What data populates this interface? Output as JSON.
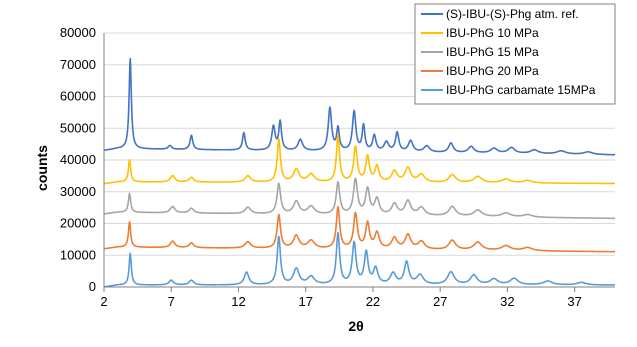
{
  "chart_data": {
    "type": "line",
    "title": "",
    "xlabel": "2θ",
    "ylabel": "counts",
    "xlim": [
      2,
      40
    ],
    "ylim": [
      0,
      80000
    ],
    "xticks": [
      2,
      7,
      12,
      17,
      22,
      27,
      32,
      37
    ],
    "yticks": [
      0,
      10000,
      20000,
      30000,
      40000,
      50000,
      60000,
      70000,
      80000
    ],
    "grid": "horizontal",
    "legend_position": "top-right",
    "series": [
      {
        "name": "(S)-IBU-(S)-Phg atm. ref.",
        "color": "#4472C4",
        "baseline": 41000,
        "peaks": [
          [
            3.95,
            28500,
            0.1
          ],
          [
            6.9,
            1200,
            0.15
          ],
          [
            8.5,
            4500,
            0.12
          ],
          [
            12.4,
            5500,
            0.12
          ],
          [
            14.6,
            7500,
            0.15
          ],
          [
            15.1,
            9000,
            0.12
          ],
          [
            16.6,
            3500,
            0.2
          ],
          [
            18.8,
            13500,
            0.15
          ],
          [
            19.4,
            7000,
            0.12
          ],
          [
            20.6,
            12500,
            0.15
          ],
          [
            21.3,
            8000,
            0.12
          ],
          [
            22.1,
            5000,
            0.15
          ],
          [
            23.0,
            3000,
            0.2
          ],
          [
            23.8,
            6000,
            0.15
          ],
          [
            24.8,
            3500,
            0.2
          ],
          [
            26.0,
            2000,
            0.25
          ],
          [
            27.8,
            3000,
            0.2
          ],
          [
            29.3,
            2000,
            0.25
          ],
          [
            31.0,
            1500,
            0.3
          ],
          [
            32.3,
            1800,
            0.3
          ],
          [
            34.0,
            1200,
            0.35
          ],
          [
            36.0,
            1000,
            0.4
          ],
          [
            38.0,
            800,
            0.4
          ]
        ],
        "tail": 2000
      },
      {
        "name": "IBU-PhG 10 MPa",
        "color": "#FFC000",
        "baseline": 32000,
        "peaks": [
          [
            3.9,
            7000,
            0.1
          ],
          [
            7.1,
            2000,
            0.2
          ],
          [
            8.5,
            1500,
            0.2
          ],
          [
            12.7,
            2000,
            0.25
          ],
          [
            15.0,
            13500,
            0.14
          ],
          [
            16.3,
            4000,
            0.25
          ],
          [
            17.4,
            2500,
            0.3
          ],
          [
            19.4,
            14500,
            0.14
          ],
          [
            20.7,
            11000,
            0.16
          ],
          [
            21.6,
            8000,
            0.16
          ],
          [
            22.3,
            5000,
            0.18
          ],
          [
            23.6,
            3500,
            0.25
          ],
          [
            24.6,
            4500,
            0.25
          ],
          [
            25.6,
            2500,
            0.3
          ],
          [
            27.9,
            2500,
            0.3
          ],
          [
            29.8,
            2000,
            0.35
          ],
          [
            31.9,
            1200,
            0.4
          ],
          [
            33.5,
            800,
            0.4
          ]
        ],
        "tail": 500
      },
      {
        "name": "IBU-PhG 15 MPa",
        "color": "#A5A5A5",
        "baseline": 21000,
        "peaks": [
          [
            3.9,
            6000,
            0.1
          ],
          [
            7.1,
            2000,
            0.2
          ],
          [
            8.5,
            1500,
            0.2
          ],
          [
            12.7,
            2000,
            0.25
          ],
          [
            15.0,
            9500,
            0.16
          ],
          [
            16.3,
            4000,
            0.25
          ],
          [
            17.4,
            2500,
            0.3
          ],
          [
            19.4,
            10000,
            0.16
          ],
          [
            20.7,
            11000,
            0.18
          ],
          [
            21.6,
            8000,
            0.18
          ],
          [
            22.3,
            5000,
            0.2
          ],
          [
            23.6,
            3500,
            0.25
          ],
          [
            24.6,
            4500,
            0.25
          ],
          [
            25.6,
            2500,
            0.3
          ],
          [
            27.9,
            3000,
            0.3
          ],
          [
            29.8,
            2000,
            0.35
          ],
          [
            31.9,
            1200,
            0.4
          ],
          [
            33.5,
            800,
            0.4
          ]
        ],
        "tail": 2000
      },
      {
        "name": "IBU-PhG 20 MPa",
        "color": "#ED7D31",
        "baseline": 10500,
        "peaks": [
          [
            3.9,
            8000,
            0.1
          ],
          [
            7.1,
            2000,
            0.2
          ],
          [
            8.5,
            1500,
            0.2
          ],
          [
            12.7,
            2000,
            0.25
          ],
          [
            15.0,
            10500,
            0.15
          ],
          [
            16.3,
            4000,
            0.25
          ],
          [
            17.4,
            2500,
            0.3
          ],
          [
            19.4,
            13000,
            0.15
          ],
          [
            20.7,
            11000,
            0.17
          ],
          [
            21.6,
            8000,
            0.17
          ],
          [
            22.3,
            5000,
            0.2
          ],
          [
            23.6,
            3500,
            0.25
          ],
          [
            24.6,
            4500,
            0.25
          ],
          [
            25.6,
            2500,
            0.3
          ],
          [
            27.9,
            3000,
            0.3
          ],
          [
            29.8,
            2500,
            0.35
          ],
          [
            31.9,
            1500,
            0.4
          ],
          [
            33.5,
            1000,
            0.4
          ]
        ],
        "tail": 1500
      },
      {
        "name": "IBU-PhG carbamate 15MPa",
        "color": "#5B9BD5",
        "baseline": 0,
        "peaks": [
          [
            3.95,
            10000,
            0.1
          ],
          [
            7.0,
            1500,
            0.2
          ],
          [
            8.5,
            1500,
            0.2
          ],
          [
            12.6,
            4000,
            0.2
          ],
          [
            15.0,
            15000,
            0.15
          ],
          [
            16.3,
            5000,
            0.25
          ],
          [
            17.4,
            2500,
            0.3
          ],
          [
            19.4,
            16000,
            0.15
          ],
          [
            20.6,
            13000,
            0.17
          ],
          [
            21.5,
            10000,
            0.17
          ],
          [
            22.2,
            5000,
            0.2
          ],
          [
            23.5,
            3500,
            0.25
          ],
          [
            24.5,
            7000,
            0.2
          ],
          [
            25.5,
            3000,
            0.3
          ],
          [
            27.8,
            4000,
            0.3
          ],
          [
            29.5,
            3000,
            0.3
          ],
          [
            31.0,
            1800,
            0.35
          ],
          [
            32.5,
            2000,
            0.35
          ],
          [
            35.0,
            1200,
            0.4
          ],
          [
            37.5,
            800,
            0.4
          ]
        ],
        "tail": 0
      }
    ]
  }
}
